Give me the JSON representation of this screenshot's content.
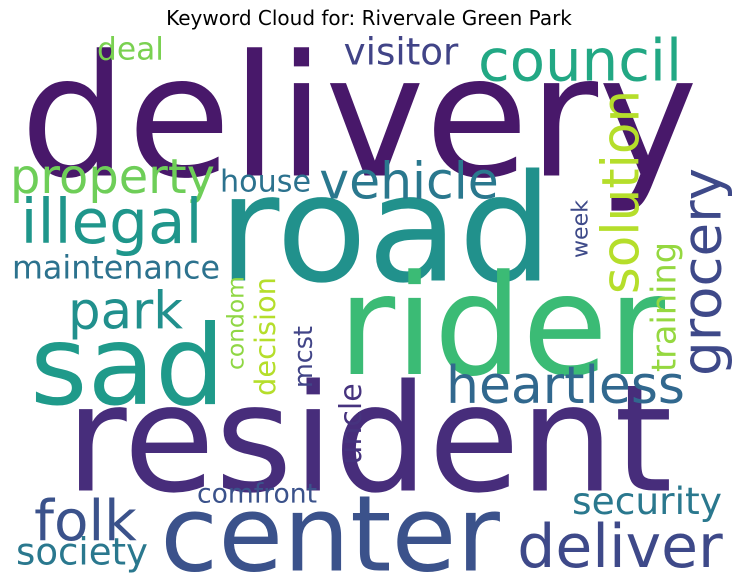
{
  "title": "Keyword Cloud for: Rivervale Green Park",
  "chart_data": {
    "type": "word_cloud",
    "title": "Keyword Cloud for: Rivervale Green Park",
    "words": [
      {
        "text": "delivery",
        "color": "#48186a"
      },
      {
        "text": "road",
        "color": "#21918c"
      },
      {
        "text": "resident",
        "color": "#472d7b"
      },
      {
        "text": "rider",
        "color": "#3bbb75"
      },
      {
        "text": "sad",
        "color": "#1f9a8a"
      },
      {
        "text": "center",
        "color": "#3b528b"
      },
      {
        "text": "council",
        "color": "#22a884"
      },
      {
        "text": "property",
        "color": "#6ece58"
      },
      {
        "text": "vehicle",
        "color": "#2a788e"
      },
      {
        "text": "illegal",
        "color": "#1f968b"
      },
      {
        "text": "park",
        "color": "#21908d"
      },
      {
        "text": "grocery",
        "color": "#3e4989"
      },
      {
        "text": "solution",
        "color": "#b5de2b"
      },
      {
        "text": "decision",
        "color": "#b5de2b"
      },
      {
        "text": "mcst",
        "color": "#414487"
      },
      {
        "text": "heartless",
        "color": "#31688e"
      },
      {
        "text": "folk",
        "color": "#3b528b"
      },
      {
        "text": "deliver",
        "color": "#3e4989"
      },
      {
        "text": "maintenance",
        "color": "#2c728e"
      },
      {
        "text": "house",
        "color": "#2c728e"
      },
      {
        "text": "visitor",
        "color": "#414487"
      },
      {
        "text": "deal",
        "color": "#7ad151"
      },
      {
        "text": "week",
        "color": "#3e4a89"
      },
      {
        "text": "training",
        "color": "#95d840"
      },
      {
        "text": "condom",
        "color": "#8fd744"
      },
      {
        "text": "uncle",
        "color": "#46337e"
      },
      {
        "text": "security",
        "color": "#2a788e"
      },
      {
        "text": "comfront",
        "color": "#3b528b"
      },
      {
        "text": "society",
        "color": "#2a788e"
      }
    ]
  }
}
